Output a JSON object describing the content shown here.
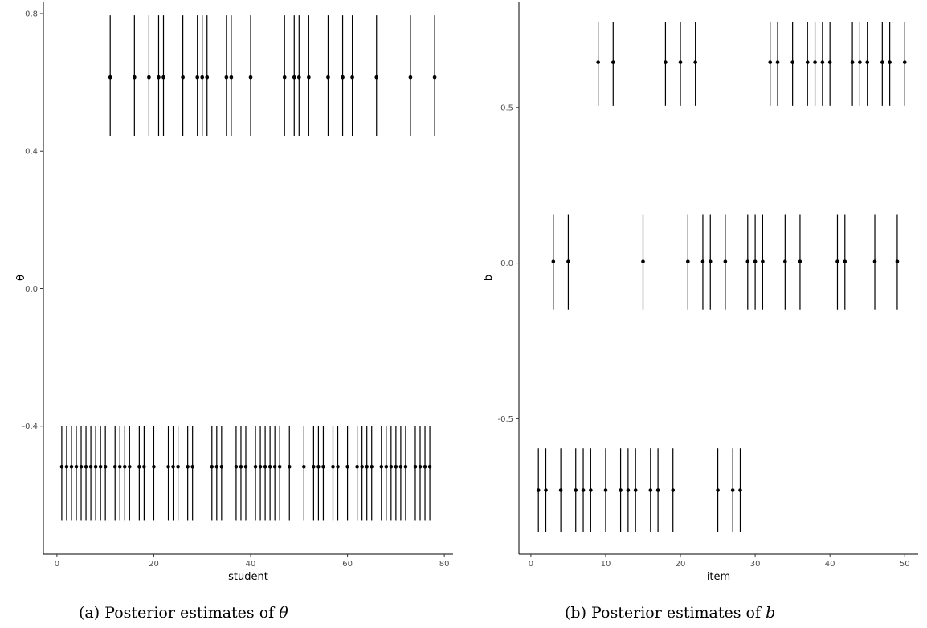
{
  "chart_data": [
    {
      "type": "errorbar",
      "xlabel": "student",
      "ylabel": "θ",
      "xlim": [
        -2.8,
        81.8
      ],
      "ylim": [
        -0.772,
        0.835
      ],
      "xticks": [
        0,
        20,
        40,
        60,
        80
      ],
      "yticks": [
        -0.4,
        0.0,
        0.4,
        0.8
      ],
      "ytick_labels": [
        "-0.4",
        "0.0",
        "0.4",
        "0.8"
      ],
      "grid": false,
      "caption_prefix": "(a)  Posterior estimates of ",
      "caption_symbol": "θ",
      "high": {
        "x": [
          11,
          16,
          19,
          21,
          22,
          26,
          29,
          30,
          31,
          35,
          36,
          40,
          47,
          49,
          50,
          52,
          56,
          59,
          61,
          66,
          73,
          78
        ],
        "estimate": 0.615,
        "lower": 0.445,
        "upper": 0.795
      },
      "low": {
        "x": [
          1,
          2,
          3,
          4,
          5,
          6,
          7,
          8,
          9,
          10,
          12,
          13,
          14,
          15,
          17,
          18,
          20,
          23,
          24,
          25,
          27,
          28,
          32,
          33,
          34,
          37,
          38,
          39,
          41,
          42,
          43,
          44,
          45,
          46,
          48,
          51,
          53,
          54,
          55,
          57,
          58,
          60,
          62,
          63,
          64,
          65,
          67,
          68,
          69,
          70,
          71,
          72,
          74,
          75,
          76,
          77
        ],
        "estimate": -0.518,
        "lower": -0.675,
        "upper": -0.4
      }
    },
    {
      "type": "errorbar",
      "xlabel": "item",
      "ylabel": "b",
      "xlim": [
        -1.6,
        51.8
      ],
      "ylim": [
        -0.935,
        0.84
      ],
      "xticks": [
        0,
        10,
        20,
        30,
        40,
        50
      ],
      "yticks": [
        -0.5,
        0.0,
        0.5
      ],
      "ytick_labels": [
        "-0.5",
        "0.0",
        "0.5"
      ],
      "grid": false,
      "caption_prefix": "(b)  Posterior estimates of ",
      "caption_symbol": "b",
      "groups": [
        {
          "x": [
            9,
            11,
            18,
            20,
            22,
            32,
            33,
            35,
            37,
            38,
            39,
            40,
            43,
            44,
            45,
            47,
            48,
            50
          ],
          "estimate": 0.645,
          "lower": 0.505,
          "upper": 0.775
        },
        {
          "x": [
            3,
            5,
            15,
            21,
            23,
            24,
            26,
            29,
            30,
            31,
            34,
            36,
            41,
            42,
            46,
            49
          ],
          "estimate": 0.005,
          "lower": -0.15,
          "upper": 0.155
        },
        {
          "x": [
            1,
            2,
            4,
            6,
            7,
            8,
            10,
            12,
            13,
            14,
            16,
            17,
            19,
            25,
            27,
            28
          ],
          "estimate": -0.73,
          "lower": -0.865,
          "upper": -0.595
        }
      ]
    }
  ]
}
